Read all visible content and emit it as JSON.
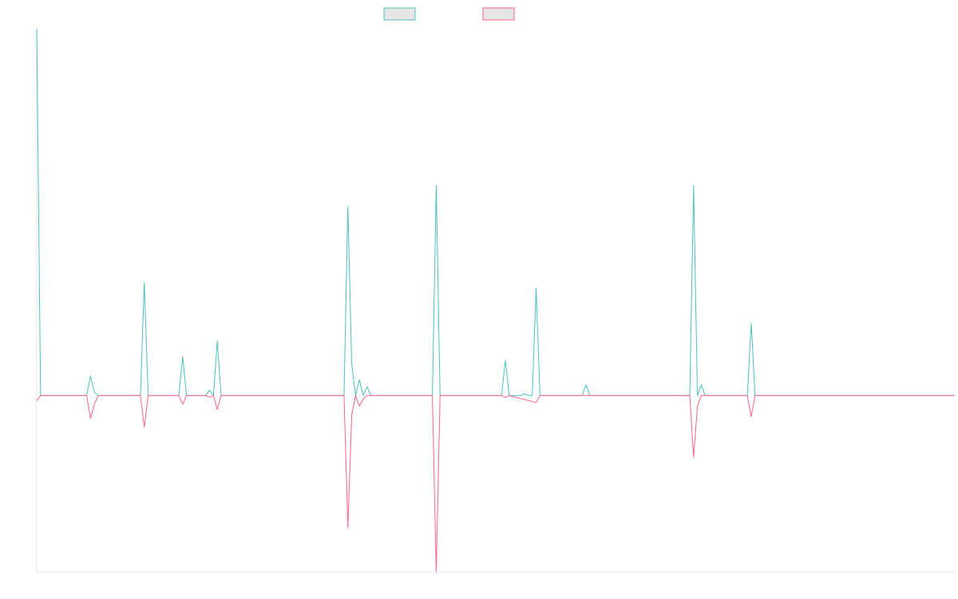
{
  "chart_data": {
    "type": "line",
    "title": "",
    "xlabel": "",
    "ylabel": "",
    "x_count": 240,
    "ylim": [
      -1,
      2.08
    ],
    "grid": false,
    "legend": {
      "placement": "top-center"
    },
    "series": [
      {
        "name": "",
        "color": "#4bc0c0",
        "fill": "#e6e6e6",
        "points": [
          [
            0,
            2.08
          ],
          [
            1,
            0
          ],
          [
            13,
            0
          ],
          [
            14,
            0.11
          ],
          [
            15,
            0.02
          ],
          [
            16,
            0
          ],
          [
            27,
            0
          ],
          [
            28,
            0.64
          ],
          [
            29,
            0
          ],
          [
            37,
            0
          ],
          [
            38,
            0.22
          ],
          [
            39,
            0
          ],
          [
            44,
            0
          ],
          [
            45,
            0.03
          ],
          [
            46,
            0
          ],
          [
            47,
            0.31
          ],
          [
            48,
            0
          ],
          [
            80,
            0
          ],
          [
            81,
            1.07
          ],
          [
            82,
            0.18
          ],
          [
            83,
            0
          ],
          [
            84,
            0.09
          ],
          [
            85,
            0
          ],
          [
            86,
            0.05
          ],
          [
            87,
            0
          ],
          [
            103,
            0
          ],
          [
            104,
            1.19
          ],
          [
            105,
            0
          ],
          [
            121,
            0
          ],
          [
            122,
            0.2
          ],
          [
            123,
            0
          ],
          [
            126,
            0
          ],
          [
            127,
            0.01
          ],
          [
            128,
            0
          ],
          [
            129,
            0
          ],
          [
            130,
            0.61
          ],
          [
            131,
            0
          ],
          [
            142,
            0
          ],
          [
            143,
            0.06
          ],
          [
            144,
            0
          ],
          [
            170,
            0
          ],
          [
            171,
            1.19
          ],
          [
            172,
            0
          ],
          [
            173,
            0.06
          ],
          [
            174,
            0
          ],
          [
            185,
            0
          ],
          [
            186,
            0.41
          ],
          [
            187,
            0
          ],
          [
            239,
            0
          ]
        ]
      },
      {
        "name": "",
        "color": "#ff6384",
        "fill": "#e6e6e6",
        "points": [
          [
            0,
            -0.03
          ],
          [
            1,
            0
          ],
          [
            13,
            0
          ],
          [
            14,
            -0.13
          ],
          [
            15,
            -0.05
          ],
          [
            16,
            0
          ],
          [
            27,
            0
          ],
          [
            28,
            -0.18
          ],
          [
            29,
            0
          ],
          [
            37,
            0
          ],
          [
            38,
            -0.05
          ],
          [
            39,
            0
          ],
          [
            44,
            0
          ],
          [
            45,
            -0.01
          ],
          [
            46,
            0
          ],
          [
            47,
            -0.08
          ],
          [
            48,
            0
          ],
          [
            80,
            0
          ],
          [
            81,
            -0.75
          ],
          [
            82,
            -0.11
          ],
          [
            83,
            0
          ],
          [
            84,
            -0.06
          ],
          [
            85,
            -0.02
          ],
          [
            86,
            0
          ],
          [
            103,
            0
          ],
          [
            104,
            -1.0
          ],
          [
            105,
            0
          ],
          [
            121,
            0
          ],
          [
            122,
            -0.01
          ],
          [
            123,
            0
          ],
          [
            130,
            -0.04
          ],
          [
            131,
            0
          ],
          [
            170,
            0
          ],
          [
            171,
            -0.35
          ],
          [
            172,
            -0.06
          ],
          [
            173,
            0
          ],
          [
            185,
            0
          ],
          [
            186,
            -0.12
          ],
          [
            187,
            0
          ],
          [
            239,
            0
          ]
        ]
      }
    ]
  }
}
